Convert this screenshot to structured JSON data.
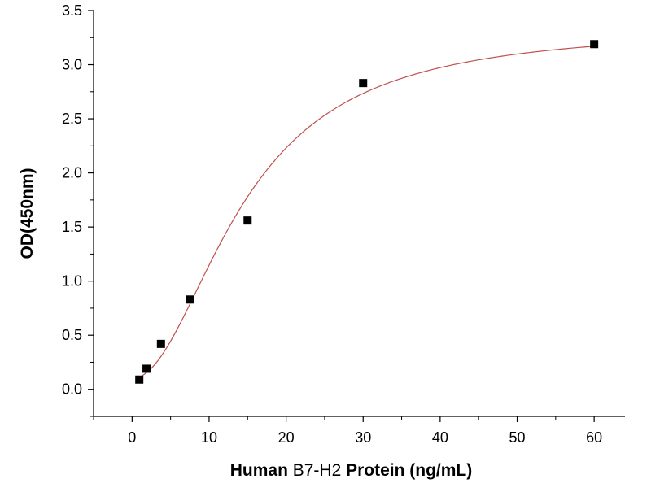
{
  "chart_data": {
    "type": "scatter",
    "title": "",
    "xlabel_parts": [
      {
        "text": "Human ",
        "bold": true
      },
      {
        "text": "B7-H2",
        "bold": false
      },
      {
        "text": " Protein (ng/mL)",
        "bold": true
      }
    ],
    "ylabel": "OD(450nm)",
    "xlim": [
      -5,
      64
    ],
    "ylim": [
      -0.25,
      3.5
    ],
    "xticks": [
      0,
      10,
      20,
      30,
      40,
      50,
      60
    ],
    "xtick_labels": [
      "0",
      "10",
      "20",
      "30",
      "40",
      "50",
      "60"
    ],
    "yticks": [
      0.0,
      0.5,
      1.0,
      1.5,
      2.0,
      2.5,
      3.0,
      3.5
    ],
    "ytick_labels": [
      "0.0",
      "0.5",
      "1.0",
      "1.5",
      "2.0",
      "2.5",
      "3.0",
      "3.5"
    ],
    "grid": false,
    "legend": "none",
    "series": [
      {
        "marker": "square",
        "color": "#000000",
        "x": [
          0.9375,
          1.875,
          3.75,
          7.5,
          15,
          30,
          60
        ],
        "y": [
          0.09,
          0.19,
          0.42,
          0.83,
          1.56,
          2.83,
          3.19
        ]
      }
    ],
    "fit_curve": {
      "model": "4PL",
      "color": "#c0504d",
      "bottom": 0.1,
      "top": 3.35,
      "ec50": 14.5,
      "hill": 2.0,
      "x_range": [
        1,
        60
      ]
    }
  }
}
